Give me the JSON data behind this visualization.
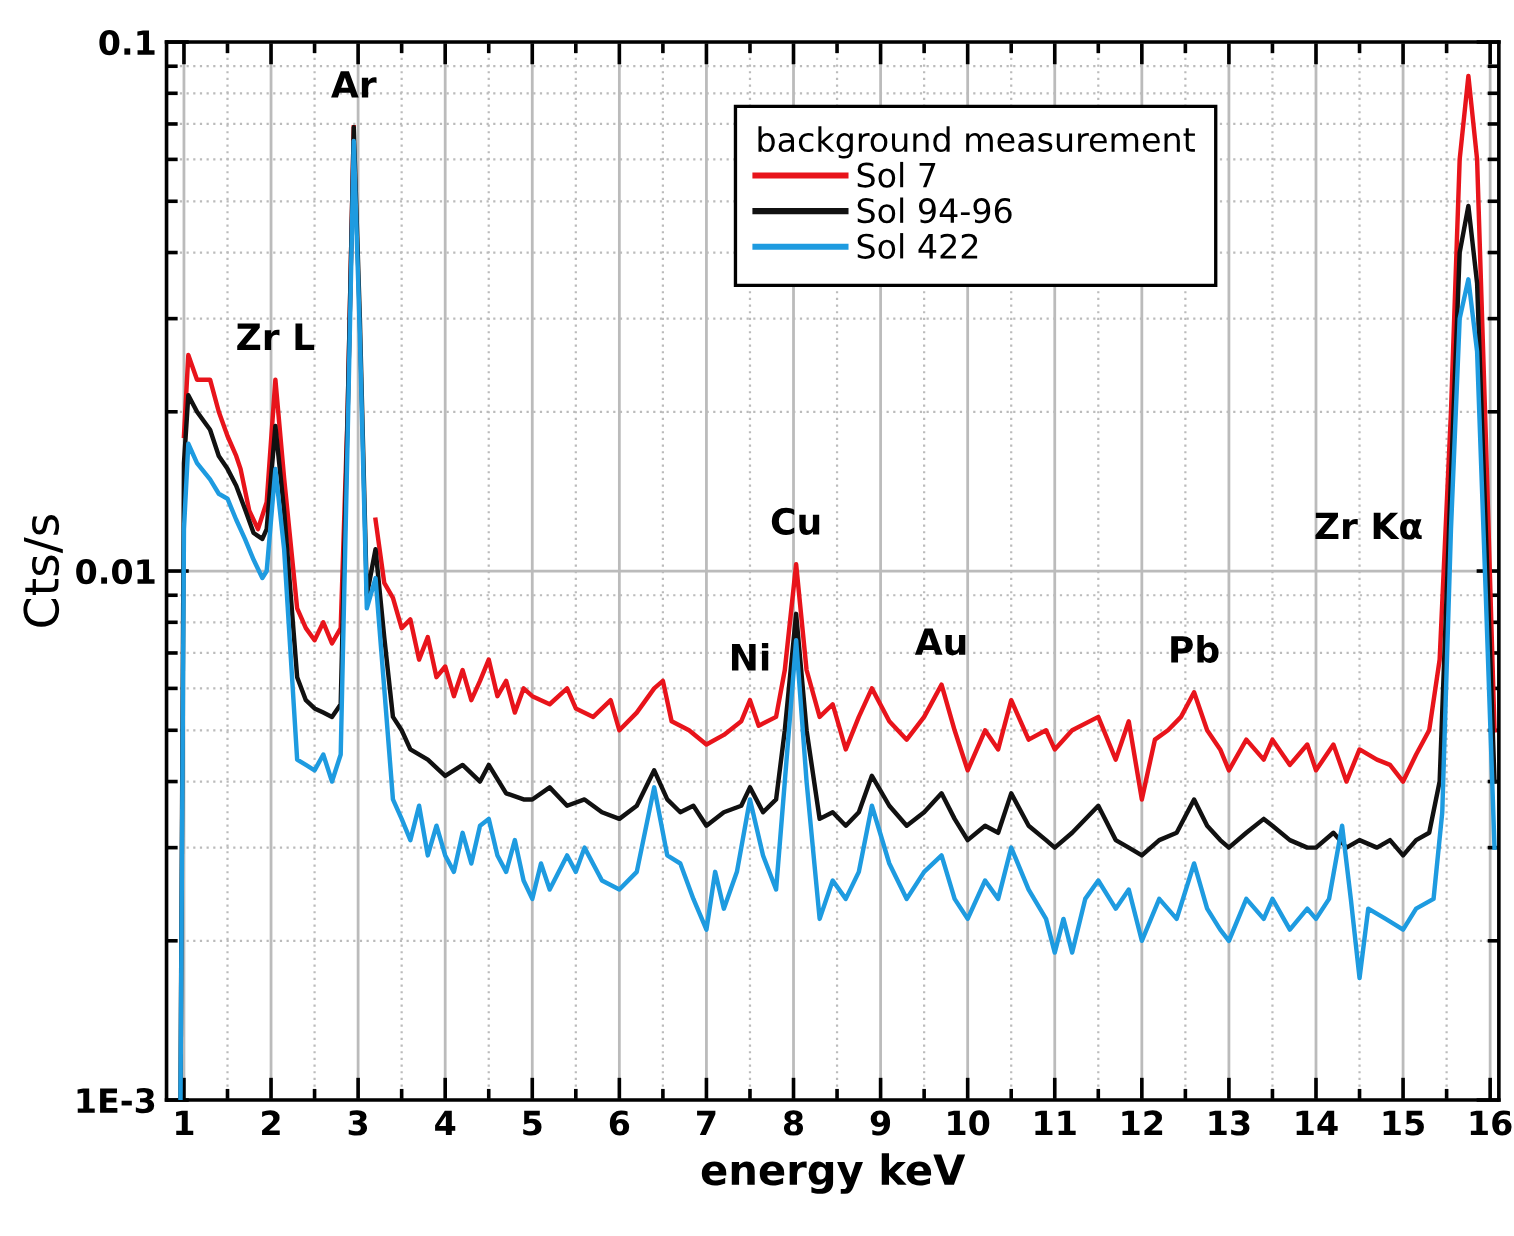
{
  "chart_data": {
    "type": "line",
    "xlabel": "energy keV",
    "ylabel": "Cts/s",
    "legend_title": "background measurement",
    "log": "y",
    "xlim": [
      0.8,
      16.1
    ],
    "ylim": [
      0.001,
      0.1
    ],
    "xticks": [
      1,
      2,
      3,
      4,
      5,
      6,
      7,
      8,
      9,
      10,
      11,
      12,
      13,
      14,
      15,
      16
    ],
    "yticks": [
      {
        "value": 0.001,
        "label": "1E-3"
      },
      0.01,
      0.1
    ],
    "grid": true,
    "legend": "top right",
    "marker": "none",
    "line_style": "solid",
    "annotations": [
      {
        "text": "Zr L",
        "x": 2.05,
        "y": 0.023
      },
      {
        "text": "Ar",
        "x": 2.95,
        "y": 0.069
      },
      {
        "text": "Ni",
        "x": 7.5,
        "y": 0.0057
      },
      {
        "text": "Cu",
        "x": 8.03,
        "y": 0.0103
      },
      {
        "text": "Au",
        "x": 9.7,
        "y": 0.0061
      },
      {
        "text": "Pb",
        "x": 12.6,
        "y": 0.0059
      },
      {
        "text": "Zr Kα",
        "x": 15.55,
        "y": 0.012
      }
    ],
    "series": [
      {
        "name": "Sol 7",
        "color": "#e8141b",
        "x": [
          1.0,
          1.05,
          1.15,
          1.3,
          1.4,
          1.5,
          1.6,
          1.65,
          1.75,
          1.85,
          1.95,
          2.05,
          2.15,
          2.3,
          2.4,
          2.5,
          2.6,
          2.7,
          2.8,
          2.88,
          2.95,
          3.02,
          3.1,
          3.2,
          3.3,
          3.4,
          3.5,
          3.6,
          3.7,
          3.8,
          3.9,
          4.0,
          4.1,
          4.2,
          4.3,
          4.4,
          4.5,
          4.6,
          4.7,
          4.8,
          4.9,
          5.0,
          5.2,
          5.4,
          5.5,
          5.7,
          5.9,
          6.0,
          6.2,
          6.4,
          6.5,
          6.6,
          6.8,
          7.0,
          7.2,
          7.4,
          7.5,
          7.6,
          7.8,
          7.9,
          8.03,
          8.15,
          8.3,
          8.45,
          8.6,
          8.75,
          8.9,
          9.1,
          9.3,
          9.5,
          9.7,
          9.85,
          10.0,
          10.2,
          10.35,
          10.5,
          10.7,
          10.9,
          11.0,
          11.2,
          11.5,
          11.7,
          11.85,
          12.0,
          12.15,
          12.3,
          12.45,
          12.6,
          12.75,
          12.9,
          13.0,
          13.2,
          13.4,
          13.5,
          13.7,
          13.9,
          14.0,
          14.2,
          14.35,
          14.5,
          14.7,
          14.85,
          15.0,
          15.15,
          15.3,
          15.42,
          15.55,
          15.65,
          15.75,
          15.85,
          15.95,
          16.05
        ],
        "values": [
          0.018,
          0.0256,
          0.023,
          0.023,
          0.02,
          0.018,
          0.0165,
          0.0156,
          0.013,
          0.012,
          0.0135,
          0.023,
          0.015,
          0.0085,
          0.0078,
          0.0074,
          0.008,
          0.0073,
          0.0078,
          0.02,
          0.069,
          null,
          null,
          0.0125,
          0.0095,
          0.0089,
          0.0078,
          0.0081,
          0.0068,
          0.0075,
          0.0063,
          0.0066,
          0.0058,
          0.0065,
          0.0057,
          0.0062,
          0.0068,
          0.0058,
          0.0062,
          0.0054,
          0.006,
          0.0058,
          0.0056,
          0.006,
          0.0055,
          0.0053,
          0.0057,
          0.005,
          0.0054,
          0.006,
          0.0062,
          0.0052,
          0.005,
          0.0047,
          0.0049,
          0.0052,
          0.0057,
          0.0051,
          0.0053,
          0.0065,
          0.0103,
          0.0065,
          0.0053,
          0.0056,
          0.0046,
          0.0053,
          0.006,
          0.0052,
          0.0048,
          0.0053,
          0.0061,
          0.005,
          0.0042,
          0.005,
          0.0046,
          0.0057,
          0.0048,
          0.005,
          0.0046,
          0.005,
          0.0053,
          0.0044,
          0.0052,
          0.0037,
          0.0048,
          0.005,
          0.0053,
          0.0059,
          0.005,
          0.0046,
          0.0042,
          0.0048,
          0.0044,
          0.0048,
          0.0043,
          0.0047,
          0.0042,
          0.0047,
          0.004,
          0.0046,
          0.0044,
          0.0043,
          0.004,
          0.0045,
          0.005,
          0.0068,
          0.02,
          0.06,
          0.0863,
          0.06,
          0.018,
          0.005
        ]
      },
      {
        "name": "Sol 94-96",
        "color": "#111111",
        "x": [
          0.96,
          1.0,
          1.05,
          1.15,
          1.3,
          1.4,
          1.5,
          1.6,
          1.7,
          1.8,
          1.9,
          1.95,
          2.05,
          2.15,
          2.3,
          2.4,
          2.5,
          2.6,
          2.7,
          2.8,
          2.88,
          2.95,
          3.02,
          3.1,
          3.2,
          3.3,
          3.4,
          3.5,
          3.6,
          3.8,
          4.0,
          4.2,
          4.4,
          4.5,
          4.7,
          4.9,
          5.0,
          5.2,
          5.4,
          5.6,
          5.8,
          6.0,
          6.2,
          6.4,
          6.55,
          6.7,
          6.85,
          7.0,
          7.2,
          7.4,
          7.5,
          7.65,
          7.8,
          7.9,
          8.03,
          8.15,
          8.3,
          8.45,
          8.6,
          8.75,
          8.9,
          9.1,
          9.3,
          9.5,
          9.7,
          9.85,
          10.0,
          10.2,
          10.35,
          10.5,
          10.7,
          10.9,
          11.0,
          11.2,
          11.5,
          11.7,
          11.85,
          12.0,
          12.2,
          12.4,
          12.6,
          12.75,
          12.9,
          13.0,
          13.2,
          13.4,
          13.5,
          13.7,
          13.9,
          14.0,
          14.2,
          14.35,
          14.5,
          14.7,
          14.85,
          15.0,
          15.15,
          15.3,
          15.42,
          15.55,
          15.65,
          15.75,
          15.85,
          15.95,
          16.05
        ],
        "values": [
          0.001,
          0.016,
          0.0215,
          0.02,
          0.0185,
          0.0165,
          0.0156,
          0.0145,
          0.0131,
          0.0118,
          0.0115,
          0.012,
          0.0188,
          0.013,
          0.0063,
          0.0057,
          0.0055,
          0.0054,
          0.0053,
          0.0056,
          0.02,
          0.069,
          0.03,
          0.009,
          0.011,
          0.0075,
          0.0053,
          0.005,
          0.0046,
          0.0044,
          0.0041,
          0.0043,
          0.004,
          0.0043,
          0.0038,
          0.0037,
          0.0037,
          0.0039,
          0.0036,
          0.0037,
          0.0035,
          0.0034,
          0.0036,
          0.0042,
          0.0037,
          0.0035,
          0.0036,
          0.0033,
          0.0035,
          0.0036,
          0.0039,
          0.0035,
          0.0037,
          0.005,
          0.0083,
          0.005,
          0.0034,
          0.0035,
          0.0033,
          0.0035,
          0.0041,
          0.0036,
          0.0033,
          0.0035,
          0.0038,
          0.0034,
          0.0031,
          0.0033,
          0.0032,
          0.0038,
          0.0033,
          0.0031,
          0.003,
          0.0032,
          0.0036,
          0.0031,
          0.003,
          0.0029,
          0.0031,
          0.0032,
          0.0037,
          0.0033,
          0.0031,
          0.003,
          0.0032,
          0.0034,
          0.0033,
          0.0031,
          0.003,
          0.003,
          0.0032,
          0.003,
          0.0031,
          0.003,
          0.0031,
          0.0029,
          0.0031,
          0.0032,
          0.004,
          0.015,
          0.04,
          0.049,
          0.035,
          0.012,
          0.004
        ]
      },
      {
        "name": "Sol 422",
        "color": "#1e9be0",
        "x": [
          0.96,
          1.0,
          1.05,
          1.15,
          1.3,
          1.4,
          1.5,
          1.6,
          1.7,
          1.8,
          1.9,
          1.95,
          2.05,
          2.15,
          2.3,
          2.4,
          2.5,
          2.6,
          2.7,
          2.8,
          2.88,
          2.95,
          3.02,
          3.1,
          3.2,
          3.3,
          3.4,
          3.5,
          3.6,
          3.7,
          3.8,
          3.9,
          4.0,
          4.1,
          4.2,
          4.3,
          4.4,
          4.5,
          4.6,
          4.7,
          4.8,
          4.9,
          5.0,
          5.1,
          5.2,
          5.4,
          5.5,
          5.6,
          5.8,
          6.0,
          6.2,
          6.4,
          6.55,
          6.7,
          6.85,
          7.0,
          7.1,
          7.2,
          7.35,
          7.5,
          7.65,
          7.8,
          7.9,
          8.03,
          8.15,
          8.3,
          8.45,
          8.6,
          8.75,
          8.9,
          9.1,
          9.3,
          9.5,
          9.7,
          9.85,
          10.0,
          10.2,
          10.35,
          10.5,
          10.7,
          10.9,
          11.0,
          11.1,
          11.2,
          11.35,
          11.5,
          11.7,
          11.85,
          12.0,
          12.2,
          12.4,
          12.6,
          12.75,
          12.9,
          13.0,
          13.2,
          13.4,
          13.5,
          13.7,
          13.9,
          14.0,
          14.15,
          14.3,
          14.4,
          14.5,
          14.6,
          14.8,
          15.0,
          15.15,
          15.35,
          15.45,
          15.55,
          15.65,
          15.75,
          15.85,
          15.95,
          16.05
        ],
        "values": [
          0.001,
          0.012,
          0.0174,
          0.016,
          0.0149,
          0.014,
          0.0137,
          0.0125,
          0.0115,
          0.0105,
          0.0097,
          0.01,
          0.0156,
          0.011,
          0.0044,
          0.0043,
          0.0042,
          0.0045,
          0.004,
          0.0045,
          0.018,
          0.065,
          0.028,
          0.0085,
          0.0097,
          0.006,
          0.0037,
          0.0034,
          0.0031,
          0.0036,
          0.0029,
          0.0033,
          0.0029,
          0.0027,
          0.0032,
          0.0028,
          0.0033,
          0.0034,
          0.0029,
          0.0027,
          0.0031,
          0.0026,
          0.0024,
          0.0028,
          0.0025,
          0.0029,
          0.0027,
          0.003,
          0.0026,
          0.0025,
          0.0027,
          0.0039,
          0.0029,
          0.0028,
          0.0024,
          0.0021,
          0.0027,
          0.0023,
          0.0027,
          0.0037,
          0.0029,
          0.0025,
          0.004,
          0.0074,
          0.004,
          0.0022,
          0.0026,
          0.0024,
          0.0027,
          0.0036,
          0.0028,
          0.0024,
          0.0027,
          0.0029,
          0.0024,
          0.0022,
          0.0026,
          0.0024,
          0.003,
          0.0025,
          0.0022,
          0.0019,
          0.0022,
          0.0019,
          0.0024,
          0.0026,
          0.0023,
          0.0025,
          0.002,
          0.0024,
          0.0022,
          0.0028,
          0.0023,
          0.0021,
          0.002,
          0.0024,
          0.0022,
          0.0024,
          0.0021,
          0.0023,
          0.0022,
          0.0024,
          0.0033,
          0.0024,
          0.0017,
          0.0023,
          0.0022,
          0.0021,
          0.0023,
          0.0024,
          0.0035,
          0.012,
          0.03,
          0.0356,
          0.026,
          0.009,
          0.003
        ]
      }
    ]
  }
}
